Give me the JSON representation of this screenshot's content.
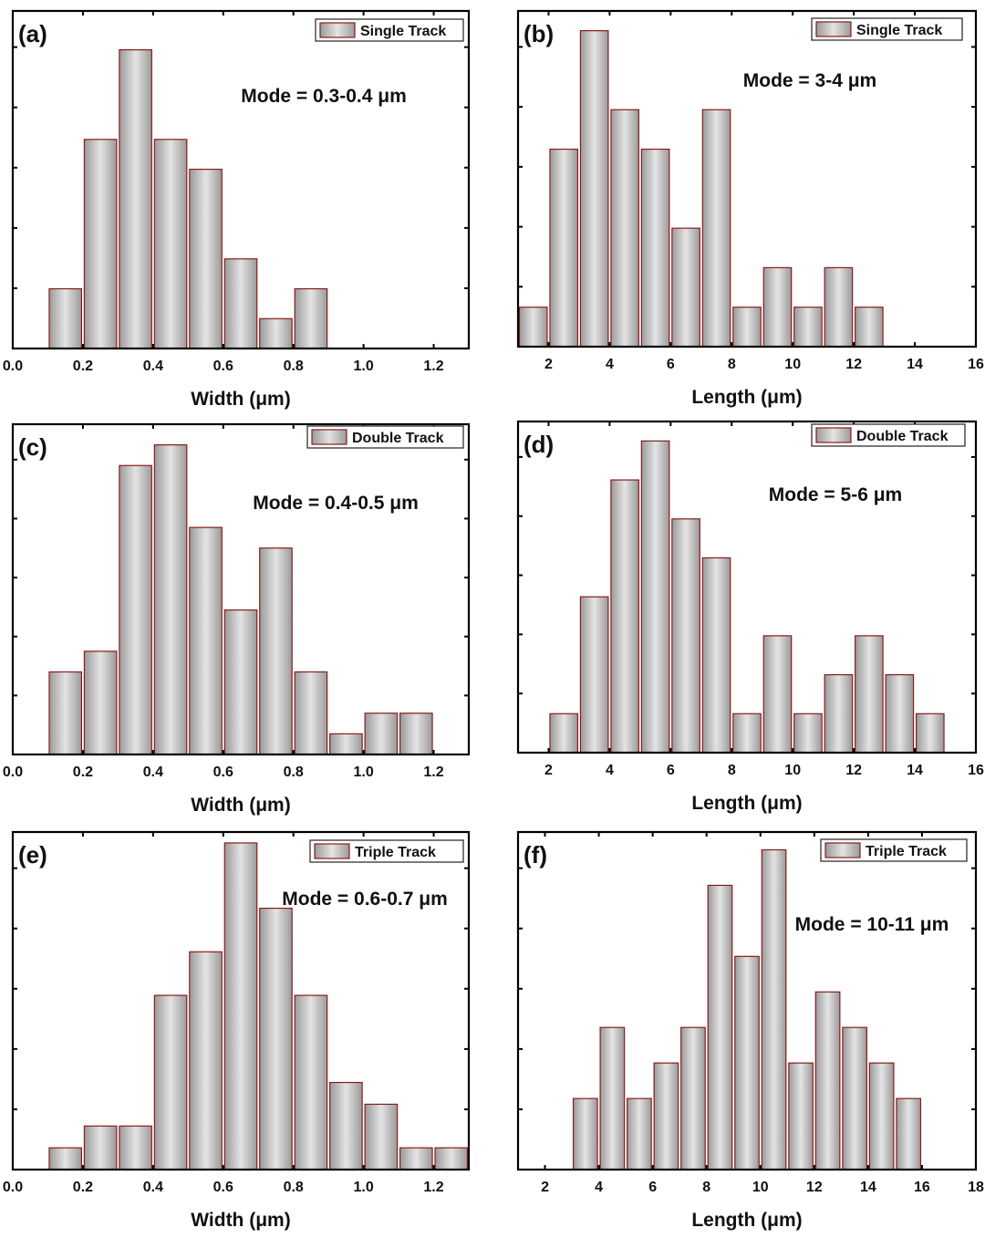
{
  "bar_fill_light": "#e4e4e4",
  "bar_fill_dark": "#9a9a9a",
  "bar_edge": "#8b1a1a",
  "axis_color": "#000000",
  "chart_data": [
    {
      "type": "bar",
      "panel_label": "(a)",
      "legend": "Single Track",
      "annotation": "Mode = 0.3-0.4 μm",
      "xlabel": "Width (μm)",
      "xlim": [
        0,
        1.3
      ],
      "ylim": [
        0,
        11.3
      ],
      "xticks": [
        0.0,
        0.2,
        0.4,
        0.6,
        0.8,
        1.0,
        1.2
      ],
      "xtick_labels": [
        "0.0",
        "0.2",
        "0.4",
        "0.6",
        "0.8",
        "1.0",
        "1.2"
      ],
      "bin_width": 0.1,
      "bins": [
        0.1,
        0.2,
        0.3,
        0.4,
        0.5,
        0.6,
        0.7,
        0.8
      ],
      "values": [
        2,
        7,
        10,
        7,
        6,
        3,
        1,
        2
      ]
    },
    {
      "type": "bar",
      "panel_label": "(b)",
      "legend": "Single Track",
      "annotation": "Mode = 3-4 μm",
      "xlabel": "Length (μm)",
      "xlim": [
        1,
        16
      ],
      "ylim": [
        0,
        8.5
      ],
      "xticks": [
        2,
        4,
        6,
        8,
        10,
        12,
        14,
        16
      ],
      "xtick_labels": [
        "2",
        "4",
        "6",
        "8",
        "10",
        "12",
        "14",
        "16"
      ],
      "bin_width": 1,
      "bins": [
        1,
        2,
        3,
        4,
        5,
        6,
        7,
        8,
        9,
        10,
        11,
        12
      ],
      "values": [
        1,
        5,
        8,
        6,
        5,
        3,
        6,
        1,
        2,
        1,
        2,
        1
      ]
    },
    {
      "type": "bar",
      "panel_label": "(c)",
      "legend": "Double Track",
      "annotation": "Mode = 0.4-0.5 μm",
      "xlabel": "Width (μm)",
      "xlim": [
        0,
        1.3
      ],
      "ylim": [
        0,
        16.0
      ],
      "xticks": [
        0.0,
        0.2,
        0.4,
        0.6,
        0.8,
        1.0,
        1.2
      ],
      "xtick_labels": [
        "0.0",
        "0.2",
        "0.4",
        "0.6",
        "0.8",
        "1.0",
        "1.2"
      ],
      "bin_width": 0.1,
      "bins": [
        0.1,
        0.2,
        0.3,
        0.4,
        0.5,
        0.6,
        0.7,
        0.8,
        0.9,
        1.0,
        1.1
      ],
      "values": [
        4,
        5,
        14,
        15,
        11,
        7,
        10,
        4,
        1,
        2,
        2
      ]
    },
    {
      "type": "bar",
      "panel_label": "(d)",
      "legend": "Double Track",
      "annotation": "Mode = 5-6 μm",
      "xlabel": "Length (μm)",
      "xlim": [
        1,
        16
      ],
      "ylim": [
        0,
        8.5
      ],
      "xticks": [
        2,
        4,
        6,
        8,
        10,
        12,
        14,
        16
      ],
      "xtick_labels": [
        "2",
        "4",
        "6",
        "8",
        "10",
        "12",
        "14",
        "16"
      ],
      "bin_width": 1,
      "bins": [
        2,
        3,
        4,
        5,
        6,
        7,
        8,
        9,
        10,
        11,
        12,
        13,
        14
      ],
      "values": [
        1,
        4,
        7,
        8,
        6,
        5,
        1,
        3,
        1,
        2,
        3,
        2,
        1
      ]
    },
    {
      "type": "bar",
      "panel_label": "(e)",
      "legend": "Triple Track",
      "annotation": "Mode = 0.6-0.7 μm",
      "xlabel": "Width (μm)",
      "xlim": [
        0,
        1.3
      ],
      "ylim": [
        0,
        15.5
      ],
      "xticks": [
        0.0,
        0.2,
        0.4,
        0.6,
        0.8,
        1.0,
        1.2
      ],
      "xtick_labels": [
        "0.0",
        "0.2",
        "0.4",
        "0.6",
        "0.8",
        "1.0",
        "1.2"
      ],
      "bin_width": 0.1,
      "bins": [
        0.1,
        0.2,
        0.3,
        0.4,
        0.5,
        0.6,
        0.7,
        0.8,
        0.9,
        1.0,
        1.1,
        1.2
      ],
      "values": [
        1,
        2,
        2,
        8,
        10,
        15,
        12,
        8,
        4,
        3,
        1,
        1
      ]
    },
    {
      "type": "bar",
      "panel_label": "(f)",
      "legend": "Triple Track",
      "annotation": "Mode = 10-11 μm",
      "xlabel": "Length (μm)",
      "xlim": [
        1,
        18
      ],
      "ylim": [
        0,
        9.5
      ],
      "xticks": [
        2,
        4,
        6,
        8,
        10,
        12,
        14,
        16,
        18
      ],
      "xtick_labels": [
        "2",
        "4",
        "6",
        "8",
        "10",
        "12",
        "14",
        "16",
        "18"
      ],
      "bin_width": 1,
      "bins": [
        3,
        4,
        5,
        6,
        7,
        8,
        9,
        10,
        11,
        12,
        13,
        14,
        15
      ],
      "values": [
        2,
        4,
        2,
        3,
        4,
        8,
        6,
        9,
        3,
        5,
        4,
        3,
        2
      ]
    }
  ]
}
